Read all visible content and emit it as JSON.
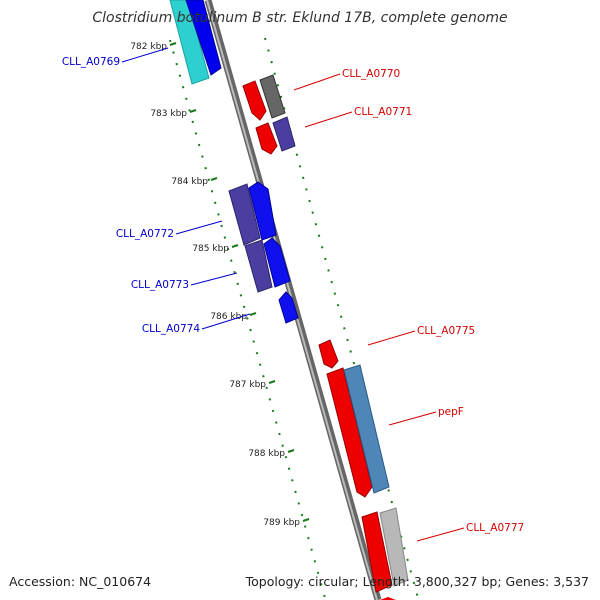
{
  "title": "Clostridium botulinum B str. Eklund 17B, complete genome",
  "accession": "Accession: NC_010674",
  "topology": "Topology: circular; Length: 3,800,327 bp; Genes: 3,537",
  "colors": {
    "forward_label": "#d40000",
    "reverse_label": "#0000cc",
    "backbone": "#888888",
    "tick": "#1a7a1a"
  },
  "scale_labels": [
    {
      "text": "782 kbp",
      "kbp": 782
    },
    {
      "text": "783 kbp",
      "kbp": 783
    },
    {
      "text": "784 kbp",
      "kbp": 784
    },
    {
      "text": "785 kbp",
      "kbp": 785
    },
    {
      "text": "786 kbp",
      "kbp": 786
    },
    {
      "text": "787 kbp",
      "kbp": 787
    },
    {
      "text": "788 kbp",
      "kbp": 788
    },
    {
      "text": "789 kbp",
      "kbp": 789
    }
  ],
  "gene_labels": [
    {
      "text": "CLL_A0769",
      "strand": "reverse"
    },
    {
      "text": "CLL_A0770",
      "strand": "forward"
    },
    {
      "text": "CLL_A0771",
      "strand": "forward"
    },
    {
      "text": "CLL_A0772",
      "strand": "reverse"
    },
    {
      "text": "CLL_A0773",
      "strand": "reverse"
    },
    {
      "text": "CLL_A0774",
      "strand": "reverse"
    },
    {
      "text": "CLL_A0775",
      "strand": "forward"
    },
    {
      "text": "pepF",
      "strand": "forward"
    },
    {
      "text": "CLL_A0777",
      "strand": "forward"
    }
  ]
}
